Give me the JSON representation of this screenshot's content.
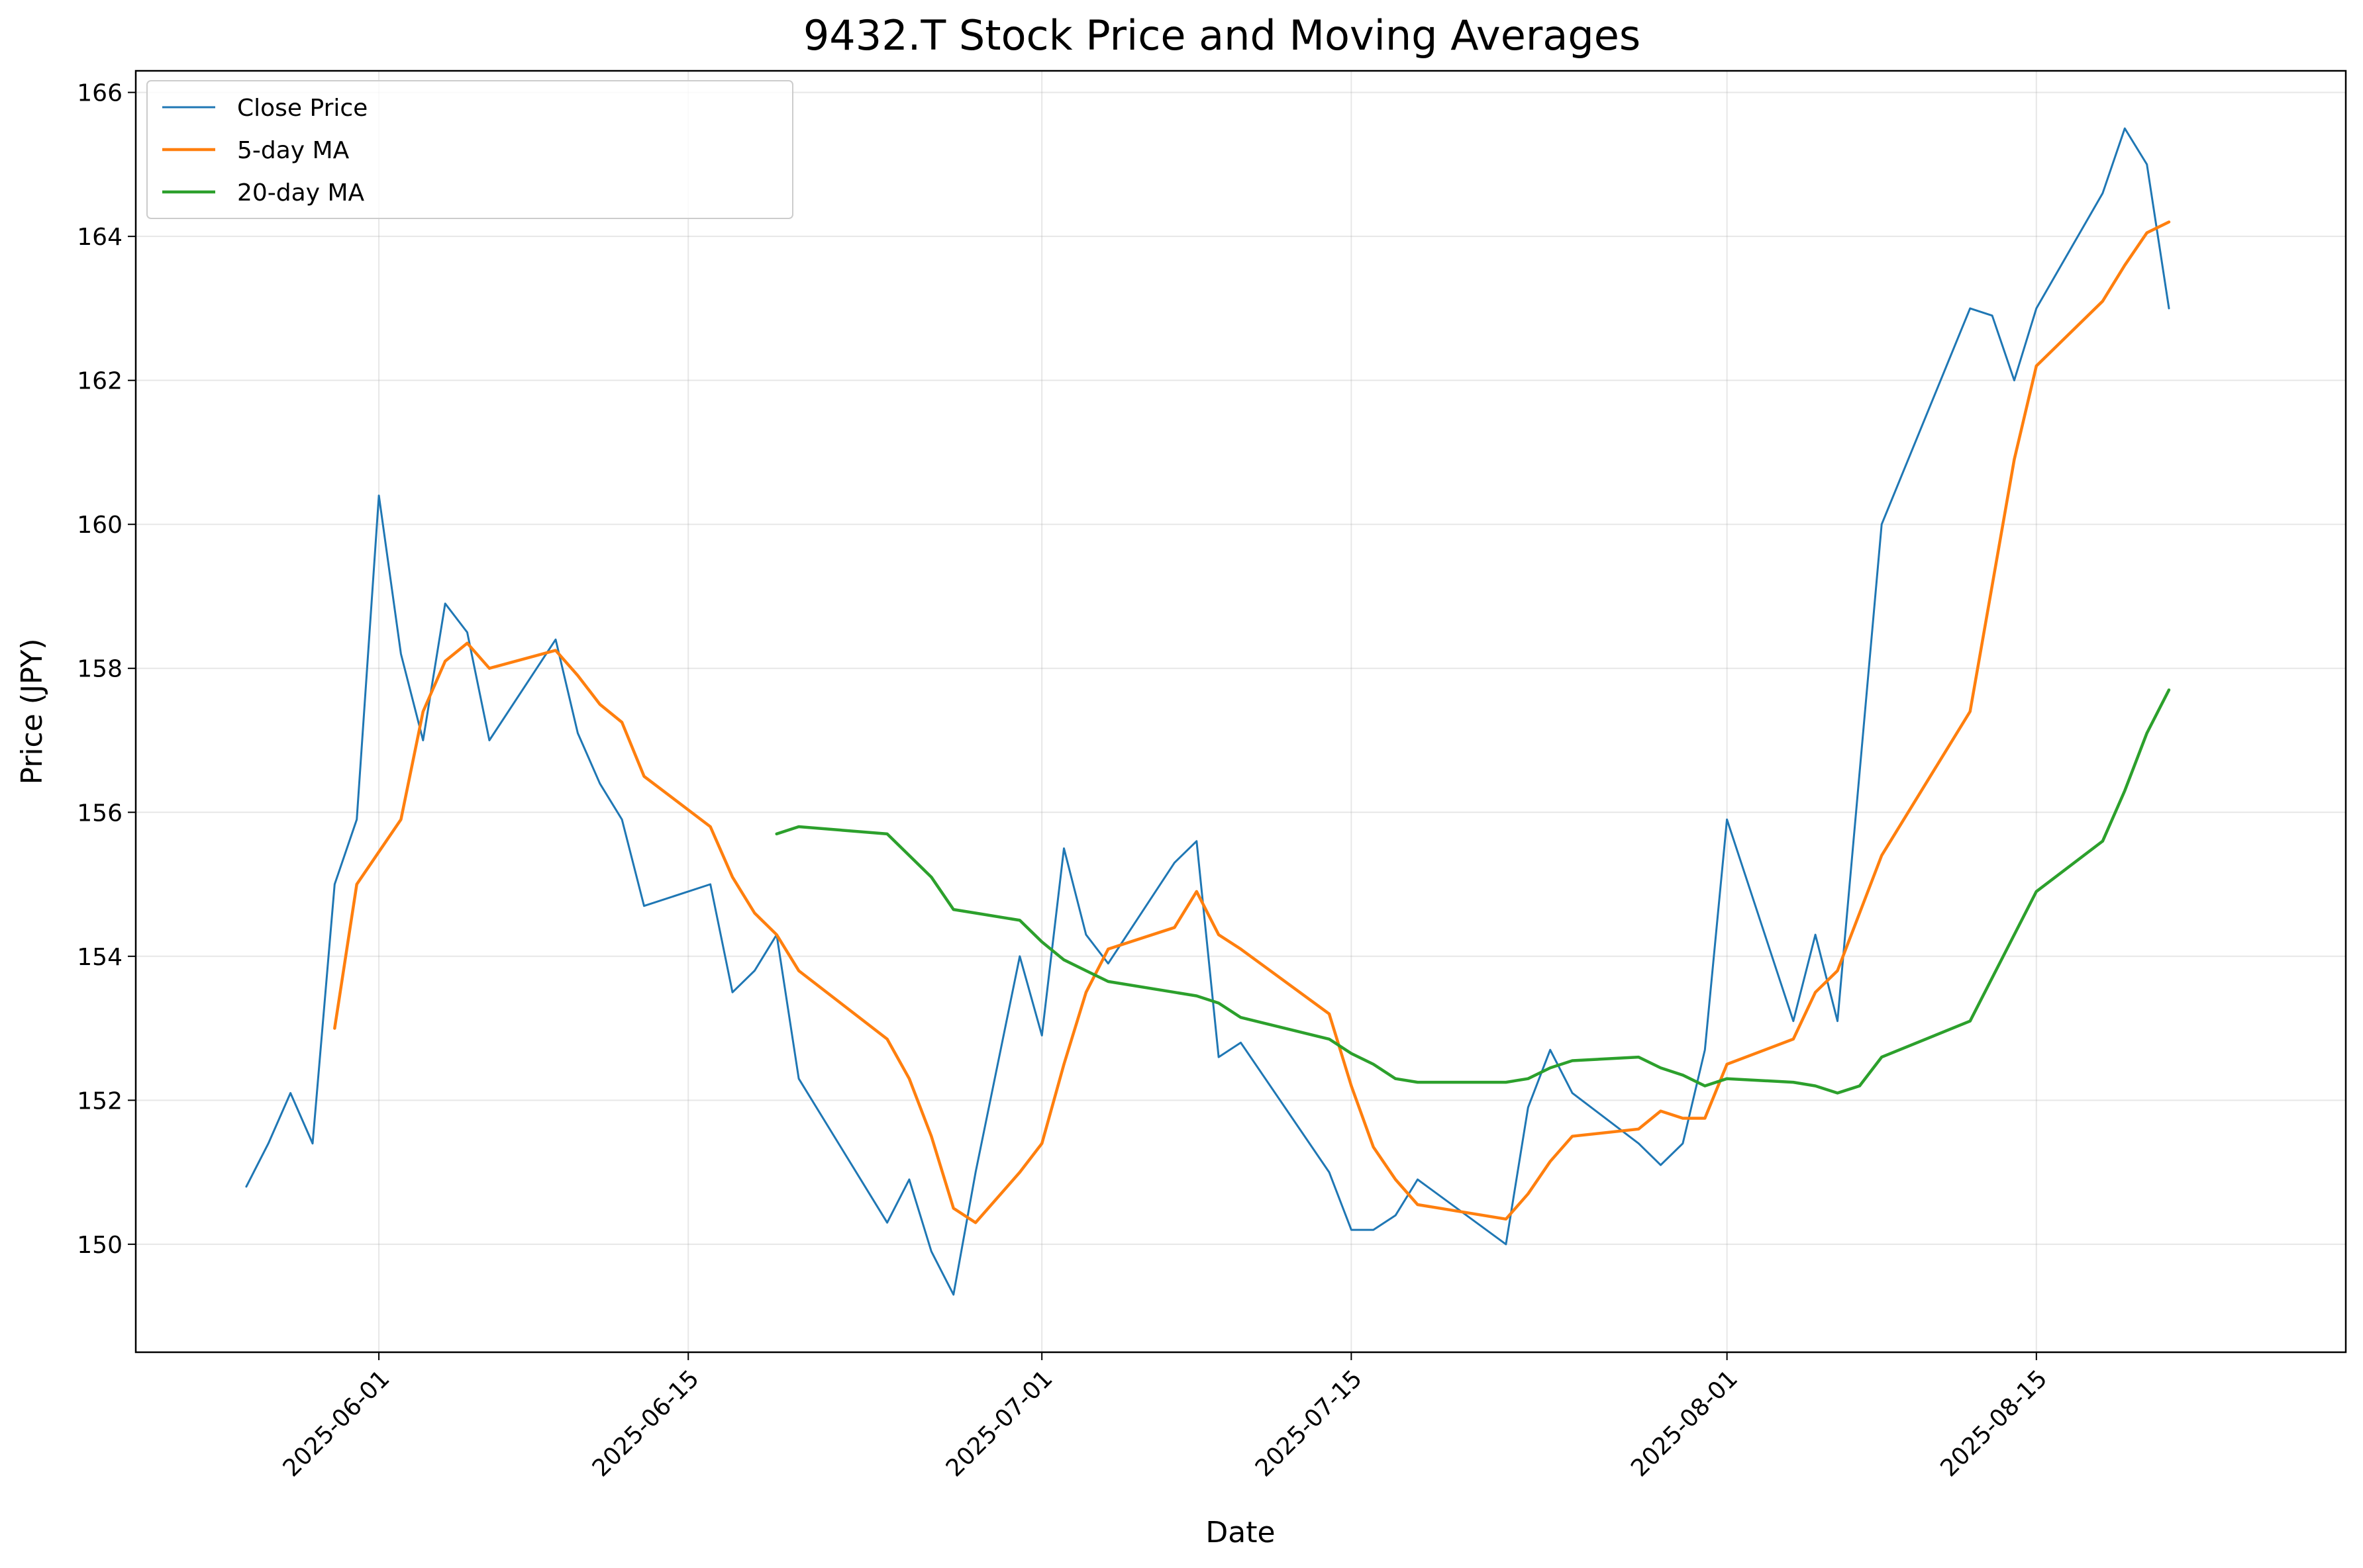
{
  "chart_data": {
    "type": "line",
    "title": "9432.T Stock Price and Moving Averages",
    "xlabel": "Date",
    "ylabel": "Price (JPY)",
    "x_tick_labels": [
      "2025-06-01",
      "2025-06-15",
      "2025-07-01",
      "2025-07-15",
      "2025-08-01",
      "2025-08-15"
    ],
    "y_tick_labels": [
      "150",
      "152",
      "154",
      "156",
      "158",
      "160",
      "162",
      "164",
      "166"
    ],
    "xlim": [
      "2025-05-21",
      "2025-08-29"
    ],
    "ylim": [
      148.5,
      166.3
    ],
    "grid": true,
    "legend_position": "top-left",
    "colors": {
      "close": "#1f77b4",
      "ma5": "#ff7f0e",
      "ma20": "#2ca02c"
    },
    "series": [
      {
        "name": "Close Price",
        "dates": [
          "2025-05-26",
          "2025-05-27",
          "2025-05-28",
          "2025-05-29",
          "2025-05-30",
          "2025-05-31",
          "2025-06-01",
          "2025-06-02",
          "2025-06-03",
          "2025-06-04",
          "2025-06-05",
          "2025-06-06",
          "2025-06-09",
          "2025-06-10",
          "2025-06-11",
          "2025-06-12",
          "2025-06-13",
          "2025-06-16",
          "2025-06-17",
          "2025-06-18",
          "2025-06-19",
          "2025-06-20",
          "2025-06-24",
          "2025-06-25",
          "2025-06-26",
          "2025-06-27",
          "2025-06-28",
          "2025-06-30",
          "2025-07-01",
          "2025-07-02",
          "2025-07-03",
          "2025-07-04",
          "2025-07-07",
          "2025-07-08",
          "2025-07-09",
          "2025-07-10",
          "2025-07-14",
          "2025-07-15",
          "2025-07-16",
          "2025-07-17",
          "2025-07-18",
          "2025-07-22",
          "2025-07-23",
          "2025-07-24",
          "2025-07-25",
          "2025-07-28",
          "2025-07-29",
          "2025-07-30",
          "2025-07-31",
          "2025-08-01",
          "2025-08-04",
          "2025-08-05",
          "2025-08-06",
          "2025-08-08",
          "2025-08-12",
          "2025-08-13",
          "2025-08-14",
          "2025-08-15",
          "2025-08-18",
          "2025-08-19",
          "2025-08-20",
          "2025-08-21"
        ],
        "values": [
          150.8,
          151.4,
          152.1,
          151.4,
          155.0,
          155.9,
          160.4,
          158.2,
          157.0,
          158.9,
          158.5,
          157.0,
          158.4,
          157.1,
          156.4,
          155.9,
          154.7,
          155.0,
          153.5,
          153.8,
          154.3,
          152.3,
          150.3,
          150.9,
          149.9,
          149.3,
          151.0,
          154.0,
          152.9,
          155.5,
          154.3,
          153.9,
          155.3,
          155.6,
          152.6,
          152.8,
          151.0,
          150.2,
          150.2,
          150.4,
          150.9,
          150.0,
          151.9,
          152.7,
          152.1,
          151.4,
          151.1,
          151.4,
          152.7,
          155.9,
          153.1,
          154.3,
          153.1,
          160.0,
          163.0,
          162.9,
          162.0,
          163.0,
          164.6,
          165.5,
          165.0,
          163.0
        ]
      },
      {
        "name": "5-day MA",
        "dates": [
          "2025-05-30",
          "2025-05-31",
          "2025-06-02",
          "2025-06-03",
          "2025-06-04",
          "2025-06-05",
          "2025-06-06",
          "2025-06-09",
          "2025-06-10",
          "2025-06-11",
          "2025-06-12",
          "2025-06-13",
          "2025-06-16",
          "2025-06-17",
          "2025-06-18",
          "2025-06-19",
          "2025-06-20",
          "2025-06-24",
          "2025-06-25",
          "2025-06-26",
          "2025-06-27",
          "2025-06-28",
          "2025-06-30",
          "2025-07-01",
          "2025-07-02",
          "2025-07-03",
          "2025-07-04",
          "2025-07-07",
          "2025-07-08",
          "2025-07-09",
          "2025-07-10",
          "2025-07-14",
          "2025-07-15",
          "2025-07-16",
          "2025-07-17",
          "2025-07-18",
          "2025-07-22",
          "2025-07-23",
          "2025-07-24",
          "2025-07-25",
          "2025-07-28",
          "2025-07-29",
          "2025-07-30",
          "2025-07-31",
          "2025-08-01",
          "2025-08-04",
          "2025-08-05",
          "2025-08-06",
          "2025-08-07",
          "2025-08-08",
          "2025-08-12",
          "2025-08-14",
          "2025-08-15",
          "2025-08-18",
          "2025-08-19",
          "2025-08-20",
          "2025-08-21"
        ],
        "values": [
          153.0,
          155.0,
          155.9,
          157.4,
          158.1,
          158.35,
          158.0,
          158.25,
          157.9,
          157.5,
          157.25,
          156.5,
          155.8,
          155.1,
          154.6,
          154.3,
          153.8,
          152.85,
          152.3,
          151.5,
          150.5,
          150.3,
          151.0,
          151.4,
          152.5,
          153.5,
          154.1,
          154.4,
          154.9,
          154.3,
          154.1,
          153.2,
          152.2,
          151.35,
          150.9,
          150.55,
          150.35,
          150.7,
          151.15,
          151.5,
          151.6,
          151.85,
          151.75,
          151.75,
          152.5,
          152.85,
          153.5,
          153.8,
          154.6,
          155.4,
          157.4,
          160.9,
          162.2,
          163.1,
          163.6,
          164.05,
          164.2
        ]
      },
      {
        "name": "20-day MA",
        "dates": [
          "2025-06-19",
          "2025-06-20",
          "2025-06-24",
          "2025-06-25",
          "2025-06-26",
          "2025-06-27",
          "2025-06-28",
          "2025-06-30",
          "2025-07-01",
          "2025-07-02",
          "2025-07-03",
          "2025-07-04",
          "2025-07-07",
          "2025-07-08",
          "2025-07-09",
          "2025-07-10",
          "2025-07-14",
          "2025-07-15",
          "2025-07-16",
          "2025-07-17",
          "2025-07-18",
          "2025-07-22",
          "2025-07-23",
          "2025-07-24",
          "2025-07-25",
          "2025-07-28",
          "2025-07-29",
          "2025-07-30",
          "2025-07-31",
          "2025-08-01",
          "2025-08-04",
          "2025-08-05",
          "2025-08-06",
          "2025-08-07",
          "2025-08-08",
          "2025-08-12",
          "2025-08-15",
          "2025-08-18",
          "2025-08-19",
          "2025-08-20",
          "2025-08-21"
        ],
        "values": [
          155.7,
          155.8,
          155.7,
          155.4,
          155.1,
          154.65,
          154.6,
          154.5,
          154.2,
          153.95,
          153.8,
          153.65,
          153.5,
          153.45,
          153.35,
          153.15,
          152.85,
          152.65,
          152.5,
          152.3,
          152.25,
          152.25,
          152.3,
          152.45,
          152.55,
          152.6,
          152.45,
          152.35,
          152.2,
          152.3,
          152.25,
          152.2,
          152.1,
          152.2,
          152.6,
          153.1,
          154.9,
          155.6,
          156.3,
          157.1,
          157.7
        ]
      }
    ]
  }
}
